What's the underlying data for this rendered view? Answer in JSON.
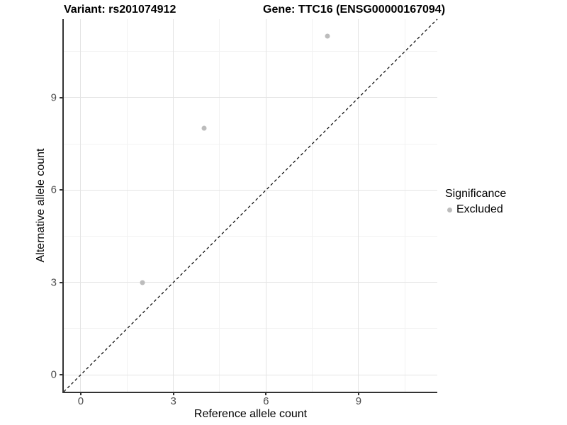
{
  "titles": {
    "variant": "Variant: rs201074912",
    "gene": "Gene: TTC16 (ENSG00000167094)"
  },
  "legend": {
    "title": "Significance",
    "items": [
      {
        "label": "Excluded",
        "color": "#bcbcbc"
      }
    ]
  },
  "colors": {
    "axis_line": "#333333",
    "tick_label": "#4d4d4d",
    "grid_major": "#e4e4e4",
    "grid_minor": "#f2f2f2",
    "point": "#bcbcbc",
    "reference_line": "#111111",
    "background": "#ffffff"
  },
  "chart_data": {
    "type": "scatter",
    "title": "Variant: rs201074912   |   Gene: TTC16 (ENSG00000167094)",
    "xlabel": "Reference allele count",
    "ylabel": "Alternative allele count",
    "xlim": [
      -0.55,
      11.55
    ],
    "ylim": [
      -0.55,
      11.55
    ],
    "x_ticks": [
      0,
      3,
      6,
      9
    ],
    "y_ticks": [
      0,
      3,
      6,
      9
    ],
    "x_minor_ticks": [
      1.5,
      4.5,
      7.5,
      10.5
    ],
    "y_minor_ticks": [
      1.5,
      4.5,
      7.5,
      10.5
    ],
    "grid": true,
    "legend_position": "right",
    "series": [
      {
        "name": "Excluded",
        "color": "#bcbcbc",
        "points": [
          [
            2,
            3
          ],
          [
            4,
            8
          ],
          [
            8,
            11
          ]
        ]
      }
    ],
    "reference_line": {
      "type": "identity",
      "slope": 1,
      "intercept": 0,
      "style": "dashed",
      "color": "#111111"
    }
  }
}
